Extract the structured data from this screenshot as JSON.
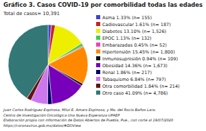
{
  "chart_data": {
    "type": "pie",
    "title": "Gráfico 3. Casos COVID-19 por comorbilidad todas las edades",
    "categories": [
      "Asma 1.33% (n= 155)",
      "Cadiovascular 1.61% (n= 187)",
      "Diabetes 13.10% (n= 1,526)",
      "EPOC 1.13% (n= 132)",
      "Embarazadas 0.45% (n= 52)",
      "Hipertensión 15.45% (n= 1,800)",
      "Inmunosupresión 0.94% (n= 109)",
      "Obesidad 14.36% (n= 1,673)",
      "Renal 1.86% (n= 217)",
      "Tabaquismo 6.84% (n= 797)",
      "Otra comorbilidad 1.84% (n= 214)",
      "Otro caso 41.09% (n= 4,786)"
    ],
    "values": [
      1.33,
      1.61,
      13.1,
      1.13,
      0.45,
      15.45,
      0.94,
      14.36,
      1.86,
      6.84,
      1.84,
      41.09
    ],
    "colors": [
      "#4444cc",
      "#cc2222",
      "#eeee00",
      "#44cc44",
      "#ee44bb",
      "#ff8800",
      "#111111",
      "#7700bb",
      "#000066",
      "#cc77ee",
      "#661111",
      "#337777"
    ],
    "legend": "right",
    "annotations": [
      "Total de casos= 10,391",
      "Juan Carlos Rodríguez Espinosa, Mitzi E. Amaro Espinosa, y Ma. del Rocío Baños Lara.",
      "Centro de Investigación Oncológica Una Nueva Esperanza-UPAEP",
      "Elaboración propia con información de Datos Abiertos de Puebla, Pue., con corte al 19/07/2020",
      "https://coronavirus.gob.mx/datos/#DOView"
    ]
  }
}
